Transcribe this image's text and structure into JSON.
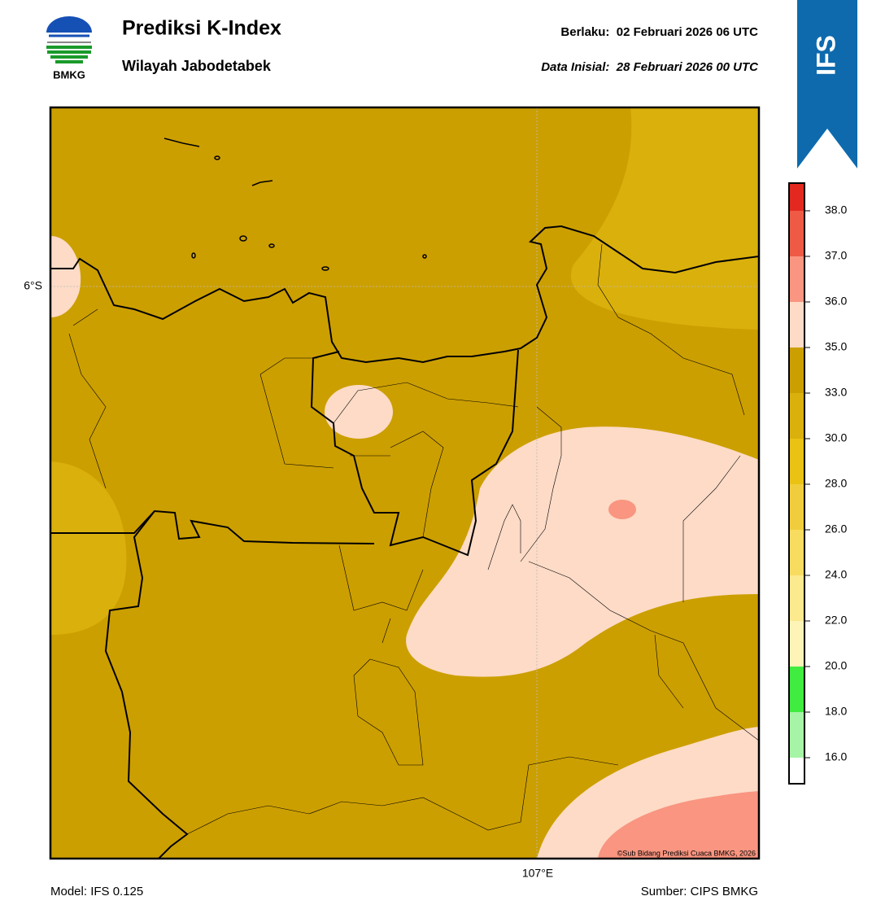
{
  "header": {
    "logo_text": "BMKG",
    "title": "Prediksi K-Index",
    "subtitle": "Wilayah Jabodetabek",
    "valid": "Berlaku:  02 Februari 2026 06 UTC",
    "init": "Data Inisial:  28 Februari 2026 00 UTC",
    "badge": "IFS"
  },
  "map": {
    "lat_label": "6°S",
    "lon_label": "107°E",
    "credit": "©Sub Bidang Prediksi Cuaca BMKG, 2026"
  },
  "colorbar": {
    "ticks": [
      {
        "value": 16,
        "label": "16.0"
      },
      {
        "value": 18,
        "label": "18.0"
      },
      {
        "value": 20,
        "label": "20.0"
      },
      {
        "value": 22,
        "label": "22.0"
      },
      {
        "value": 24,
        "label": "24.0"
      },
      {
        "value": 26,
        "label": "26.0"
      },
      {
        "value": 28,
        "label": "28.0"
      },
      {
        "value": 30,
        "label": "30.0"
      },
      {
        "value": 33,
        "label": "33.0"
      },
      {
        "value": 35,
        "label": "35.0"
      },
      {
        "value": 36,
        "label": "36.0"
      },
      {
        "value": 37,
        "label": "37.0"
      },
      {
        "value": 38,
        "label": "38.0"
      }
    ],
    "colors": [
      "#ffffff",
      "#a6f4a6",
      "#3fec3f",
      "#fff4b8",
      "#fde98e",
      "#f8dc60",
      "#f0cd3c",
      "#e9c214",
      "#dab00c",
      "#cc9f00",
      "#fddbc7",
      "#f99580",
      "#ef5a45",
      "#e3291f"
    ]
  },
  "footer": {
    "model": "Model: IFS 0.125",
    "source": "Sumber: CIPS BMKG"
  }
}
